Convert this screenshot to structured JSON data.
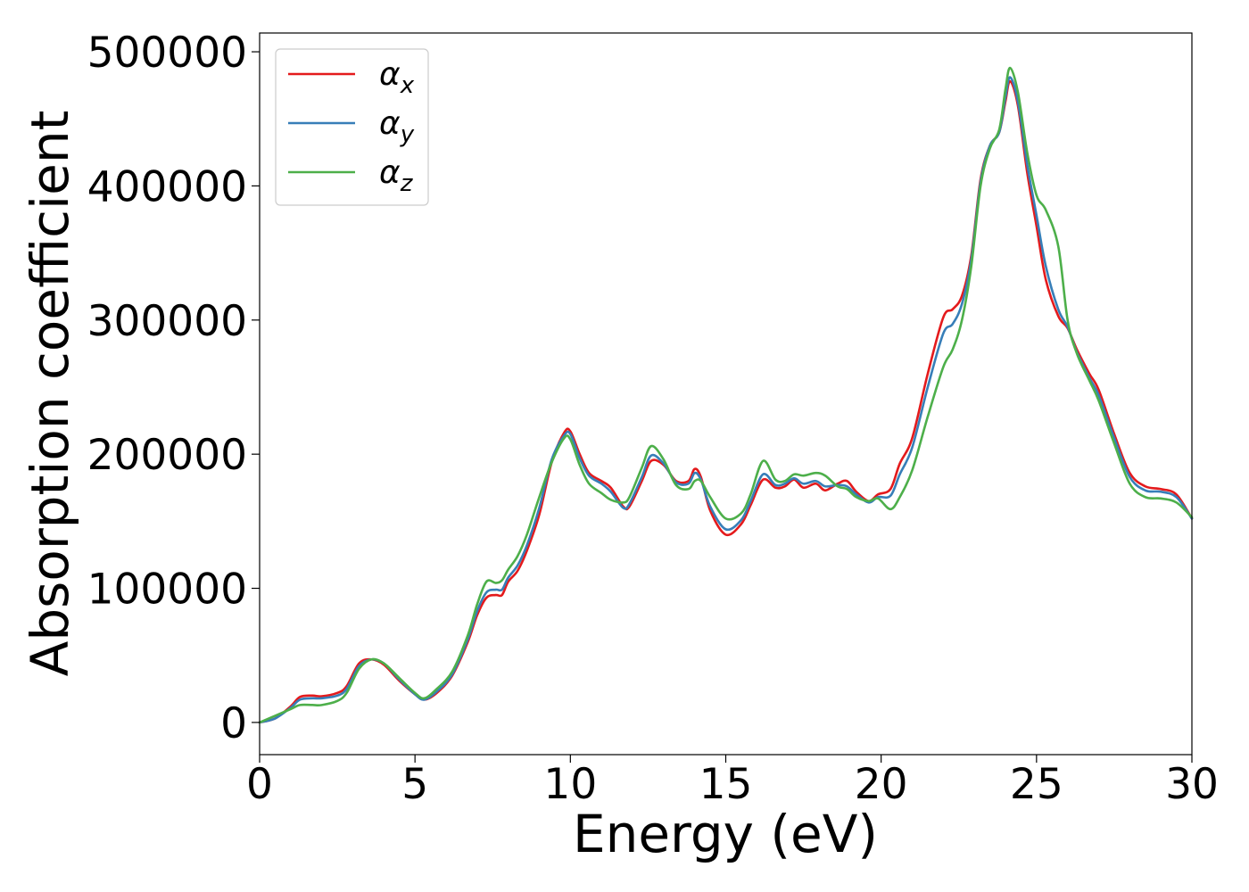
{
  "chart_data": {
    "type": "line",
    "title": "",
    "xlabel": "Energy (eV)",
    "ylabel": "Absorption coefficient",
    "xlim": [
      0,
      30
    ],
    "ylim": [
      -24000,
      514000
    ],
    "xticks": [
      0,
      5,
      10,
      15,
      20,
      25,
      30
    ],
    "yticks": [
      0,
      100000,
      200000,
      300000,
      400000,
      500000
    ],
    "xtick_labels": [
      "0",
      "5",
      "10",
      "15",
      "20",
      "25",
      "30"
    ],
    "ytick_labels": [
      "0",
      "100000",
      "200000",
      "300000",
      "400000",
      "500000"
    ],
    "grid": false,
    "legend_position": "top-left",
    "series": [
      {
        "name": "αx",
        "base": "α",
        "sub": "x",
        "color": "#e41a1c",
        "points": [
          [
            0,
            0
          ],
          [
            0.5,
            3000
          ],
          [
            1.0,
            12000
          ],
          [
            1.3,
            19000
          ],
          [
            1.7,
            20000
          ],
          [
            2.0,
            19500
          ],
          [
            2.5,
            22000
          ],
          [
            2.8,
            27000
          ],
          [
            3.2,
            44000
          ],
          [
            3.6,
            47000
          ],
          [
            4.0,
            43000
          ],
          [
            4.5,
            31000
          ],
          [
            5.0,
            21000
          ],
          [
            5.3,
            17000
          ],
          [
            5.7,
            22000
          ],
          [
            6.2,
            35000
          ],
          [
            6.7,
            60000
          ],
          [
            7.0,
            80000
          ],
          [
            7.3,
            93000
          ],
          [
            7.6,
            95000
          ],
          [
            7.8,
            95000
          ],
          [
            8.0,
            105000
          ],
          [
            8.3,
            113000
          ],
          [
            8.6,
            128000
          ],
          [
            9.0,
            155000
          ],
          [
            9.4,
            194000
          ],
          [
            9.8,
            216000
          ],
          [
            10.0,
            217000
          ],
          [
            10.3,
            200000
          ],
          [
            10.6,
            186000
          ],
          [
            11.0,
            180000
          ],
          [
            11.3,
            175000
          ],
          [
            11.7,
            161000
          ],
          [
            11.9,
            161000
          ],
          [
            12.3,
            180000
          ],
          [
            12.6,
            195000
          ],
          [
            13.0,
            192000
          ],
          [
            13.4,
            180000
          ],
          [
            13.8,
            180000
          ],
          [
            14.0,
            189000
          ],
          [
            14.2,
            183000
          ],
          [
            14.5,
            158000
          ],
          [
            15.0,
            140000
          ],
          [
            15.5,
            148000
          ],
          [
            15.8,
            162000
          ],
          [
            16.2,
            181000
          ],
          [
            16.6,
            175000
          ],
          [
            16.9,
            176000
          ],
          [
            17.2,
            181000
          ],
          [
            17.5,
            175000
          ],
          [
            17.9,
            178000
          ],
          [
            18.2,
            173000
          ],
          [
            18.6,
            178000
          ],
          [
            18.9,
            180000
          ],
          [
            19.2,
            172000
          ],
          [
            19.6,
            165000
          ],
          [
            19.9,
            170000
          ],
          [
            20.3,
            174000
          ],
          [
            20.6,
            193000
          ],
          [
            21.0,
            212000
          ],
          [
            21.5,
            260000
          ],
          [
            22.0,
            302000
          ],
          [
            22.3,
            308000
          ],
          [
            22.6,
            318000
          ],
          [
            22.9,
            348000
          ],
          [
            23.2,
            405000
          ],
          [
            23.5,
            430000
          ],
          [
            23.8,
            440000
          ],
          [
            24.0,
            463000
          ],
          [
            24.15,
            478000
          ],
          [
            24.4,
            460000
          ],
          [
            24.7,
            410000
          ],
          [
            25.0,
            370000
          ],
          [
            25.3,
            330000
          ],
          [
            25.7,
            303000
          ],
          [
            26.0,
            294000
          ],
          [
            26.3,
            278000
          ],
          [
            26.7,
            260000
          ],
          [
            27.0,
            248000
          ],
          [
            27.5,
            215000
          ],
          [
            28.0,
            186000
          ],
          [
            28.5,
            176000
          ],
          [
            29.0,
            174000
          ],
          [
            29.5,
            170000
          ],
          [
            30.0,
            152000
          ]
        ]
      },
      {
        "name": "αy",
        "base": "α",
        "sub": "y",
        "color": "#377eb8",
        "points": [
          [
            0,
            0
          ],
          [
            0.5,
            3000
          ],
          [
            1.0,
            11000
          ],
          [
            1.3,
            17000
          ],
          [
            1.7,
            18000
          ],
          [
            2.0,
            18000
          ],
          [
            2.5,
            20000
          ],
          [
            2.8,
            25000
          ],
          [
            3.2,
            42000
          ],
          [
            3.6,
            47000
          ],
          [
            4.0,
            44000
          ],
          [
            4.5,
            32000
          ],
          [
            5.0,
            21000
          ],
          [
            5.3,
            17000
          ],
          [
            5.7,
            23000
          ],
          [
            6.2,
            36000
          ],
          [
            6.7,
            62000
          ],
          [
            7.0,
            83000
          ],
          [
            7.3,
            97000
          ],
          [
            7.6,
            99000
          ],
          [
            7.8,
            99000
          ],
          [
            8.0,
            108000
          ],
          [
            8.3,
            117000
          ],
          [
            8.6,
            132000
          ],
          [
            9.0,
            160000
          ],
          [
            9.4,
            196000
          ],
          [
            9.8,
            214000
          ],
          [
            10.0,
            215000
          ],
          [
            10.3,
            197000
          ],
          [
            10.6,
            184000
          ],
          [
            11.0,
            178000
          ],
          [
            11.3,
            172000
          ],
          [
            11.7,
            160000
          ],
          [
            11.9,
            163000
          ],
          [
            12.3,
            183000
          ],
          [
            12.6,
            199000
          ],
          [
            13.0,
            193000
          ],
          [
            13.4,
            179000
          ],
          [
            13.8,
            178000
          ],
          [
            14.0,
            186000
          ],
          [
            14.2,
            181000
          ],
          [
            14.5,
            161000
          ],
          [
            15.0,
            144000
          ],
          [
            15.5,
            151000
          ],
          [
            15.8,
            165000
          ],
          [
            16.2,
            185000
          ],
          [
            16.6,
            177000
          ],
          [
            16.9,
            178000
          ],
          [
            17.2,
            182000
          ],
          [
            17.5,
            178000
          ],
          [
            17.9,
            180000
          ],
          [
            18.2,
            176000
          ],
          [
            18.6,
            177000
          ],
          [
            18.9,
            176000
          ],
          [
            19.2,
            170000
          ],
          [
            19.6,
            164000
          ],
          [
            19.9,
            168000
          ],
          [
            20.3,
            169000
          ],
          [
            20.6,
            185000
          ],
          [
            21.0,
            205000
          ],
          [
            21.5,
            250000
          ],
          [
            22.0,
            290000
          ],
          [
            22.3,
            297000
          ],
          [
            22.6,
            312000
          ],
          [
            22.9,
            345000
          ],
          [
            23.2,
            403000
          ],
          [
            23.5,
            430000
          ],
          [
            23.8,
            440000
          ],
          [
            24.0,
            466000
          ],
          [
            24.15,
            481000
          ],
          [
            24.4,
            463000
          ],
          [
            24.7,
            416000
          ],
          [
            25.0,
            378000
          ],
          [
            25.3,
            340000
          ],
          [
            25.7,
            308000
          ],
          [
            26.0,
            295000
          ],
          [
            26.3,
            276000
          ],
          [
            26.7,
            257000
          ],
          [
            27.0,
            244000
          ],
          [
            27.5,
            212000
          ],
          [
            28.0,
            183000
          ],
          [
            28.5,
            173000
          ],
          [
            29.0,
            172000
          ],
          [
            29.5,
            168000
          ],
          [
            30.0,
            152000
          ]
        ]
      },
      {
        "name": "αz",
        "base": "α",
        "sub": "z",
        "color": "#4daf4a",
        "points": [
          [
            0,
            0
          ],
          [
            0.5,
            5000
          ],
          [
            1.0,
            10000
          ],
          [
            1.3,
            13000
          ],
          [
            1.7,
            13000
          ],
          [
            2.0,
            13000
          ],
          [
            2.5,
            16000
          ],
          [
            2.8,
            22000
          ],
          [
            3.2,
            40000
          ],
          [
            3.6,
            47000
          ],
          [
            4.0,
            44000
          ],
          [
            4.5,
            33000
          ],
          [
            5.0,
            22000
          ],
          [
            5.3,
            18000
          ],
          [
            5.7,
            25000
          ],
          [
            6.2,
            38000
          ],
          [
            6.7,
            65000
          ],
          [
            7.0,
            88000
          ],
          [
            7.3,
            105000
          ],
          [
            7.6,
            104000
          ],
          [
            7.8,
            106000
          ],
          [
            8.0,
            114000
          ],
          [
            8.3,
            124000
          ],
          [
            8.6,
            140000
          ],
          [
            9.0,
            168000
          ],
          [
            9.4,
            194000
          ],
          [
            9.8,
            212000
          ],
          [
            10.0,
            211000
          ],
          [
            10.3,
            192000
          ],
          [
            10.6,
            178000
          ],
          [
            11.0,
            171000
          ],
          [
            11.3,
            166000
          ],
          [
            11.7,
            164000
          ],
          [
            11.9,
            168000
          ],
          [
            12.3,
            190000
          ],
          [
            12.6,
            206000
          ],
          [
            13.0,
            196000
          ],
          [
            13.4,
            177000
          ],
          [
            13.8,
            174000
          ],
          [
            14.0,
            180000
          ],
          [
            14.2,
            180000
          ],
          [
            14.5,
            168000
          ],
          [
            15.0,
            152000
          ],
          [
            15.5,
            156000
          ],
          [
            15.8,
            170000
          ],
          [
            16.2,
            195000
          ],
          [
            16.6,
            181000
          ],
          [
            16.9,
            180000
          ],
          [
            17.2,
            185000
          ],
          [
            17.5,
            184000
          ],
          [
            17.9,
            186000
          ],
          [
            18.2,
            184000
          ],
          [
            18.6,
            176000
          ],
          [
            18.9,
            174000
          ],
          [
            19.2,
            168000
          ],
          [
            19.6,
            165000
          ],
          [
            19.9,
            167000
          ],
          [
            20.3,
            159000
          ],
          [
            20.6,
            168000
          ],
          [
            21.0,
            188000
          ],
          [
            21.5,
            228000
          ],
          [
            22.0,
            265000
          ],
          [
            22.3,
            278000
          ],
          [
            22.6,
            300000
          ],
          [
            22.9,
            340000
          ],
          [
            23.2,
            400000
          ],
          [
            23.5,
            428000
          ],
          [
            23.8,
            442000
          ],
          [
            24.0,
            472000
          ],
          [
            24.15,
            488000
          ],
          [
            24.4,
            470000
          ],
          [
            24.7,
            425000
          ],
          [
            25.0,
            393000
          ],
          [
            25.3,
            382000
          ],
          [
            25.7,
            355000
          ],
          [
            26.0,
            300000
          ],
          [
            26.3,
            275000
          ],
          [
            26.7,
            255000
          ],
          [
            27.0,
            240000
          ],
          [
            27.5,
            208000
          ],
          [
            28.0,
            178000
          ],
          [
            28.5,
            168000
          ],
          [
            29.0,
            167000
          ],
          [
            29.5,
            164000
          ],
          [
            30.0,
            153000
          ]
        ]
      }
    ]
  }
}
